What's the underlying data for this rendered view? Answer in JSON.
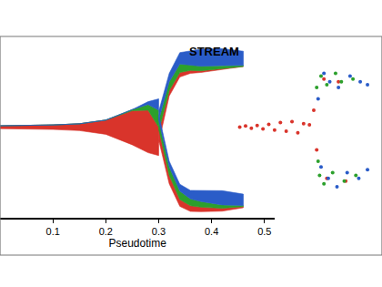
{
  "chart_data": [
    {
      "type": "stream",
      "title": "STREAM",
      "x_label": "Pseudotime",
      "xlim": [
        0,
        0.52
      ],
      "xticks": [
        0.1,
        0.2,
        0.3,
        0.4,
        0.5
      ],
      "ylim": [
        -1.6,
        1.6
      ],
      "tick_labels": "x",
      "branches": [
        {
          "x": [
            0,
            0.05,
            0.1,
            0.15,
            0.2,
            0.25,
            0.28,
            0.3
          ],
          "center": [
            0,
            0,
            0,
            0,
            0,
            0,
            0,
            0
          ],
          "series": [
            {
              "color": "#d9342b",
              "values": [
                0.05,
                0.06,
                0.08,
                0.12,
                0.25,
                0.6,
                0.75,
                0.5
              ]
            },
            {
              "color": "#2ca02c",
              "values": [
                0,
                0,
                0,
                0,
                0,
                0.02,
                0.1,
                0.3
              ]
            },
            {
              "color": "#2a5cc8",
              "values": [
                0,
                0,
                0,
                0,
                0,
                0,
                0.05,
                0.2
              ]
            }
          ]
        },
        {
          "x": [
            0.3,
            0.32,
            0.34,
            0.36,
            0.38,
            0.42,
            0.46
          ],
          "center": [
            0,
            0.75,
            1.1,
            1.15,
            1.17,
            1.2,
            1.2
          ],
          "series": [
            {
              "color": "#d9342b",
              "values": [
                0.2,
                0.1,
                0.08,
                0.05,
                0.03,
                0.02,
                0.01
              ]
            },
            {
              "color": "#2ca02c",
              "values": [
                0.2,
                0.15,
                0.15,
                0.1,
                0.08,
                0.05,
                0.02
              ]
            },
            {
              "color": "#2a5cc8",
              "values": [
                0.15,
                0.15,
                0.2,
                0.25,
                0.3,
                0.3,
                0.25
              ]
            }
          ]
        },
        {
          "x": [
            0.3,
            0.32,
            0.34,
            0.36,
            0.38,
            0.42,
            0.46
          ],
          "center": [
            0,
            -0.8,
            -1.2,
            -1.3,
            -1.3,
            -1.3,
            -1.3
          ],
          "series": [
            {
              "color": "#d9342b",
              "values": [
                0.2,
                0.15,
                0.12,
                0.1,
                0.08,
                0.05,
                0.02
              ]
            },
            {
              "color": "#2ca02c",
              "values": [
                0.15,
                0.15,
                0.15,
                0.12,
                0.1,
                0.06,
                0.02
              ]
            },
            {
              "color": "#2a5cc8",
              "values": [
                0.1,
                0.1,
                0.12,
                0.15,
                0.2,
                0.25,
                0.2
              ]
            }
          ]
        }
      ]
    },
    {
      "type": "scatter",
      "tick_labels": false,
      "xlim": [
        0,
        1
      ],
      "ylim": [
        -1.6,
        1.6
      ],
      "series": [
        {
          "color": "#d9342b",
          "x": [
            0.02,
            0.06,
            0.1,
            0.14,
            0.18,
            0.22,
            0.26,
            0.3,
            0.34,
            0.38,
            0.42,
            0.46,
            0.5,
            0.53,
            0.55,
            0.6,
            0.7,
            0.62,
            0.75
          ],
          "y": [
            0,
            0.02,
            -0.02,
            0.03,
            -0.03,
            0.05,
            -0.05,
            0.08,
            -0.07,
            0.1,
            -0.1,
            0.06,
            0.04,
            0.3,
            -0.4,
            0.85,
            0.8,
            -0.9,
            -0.95
          ]
        },
        {
          "color": "#2ca02c",
          "x": [
            0.55,
            0.56,
            0.58,
            0.62,
            0.68,
            0.72,
            0.8,
            0.57,
            0.6,
            0.66,
            0.74,
            0.82
          ],
          "y": [
            0.7,
            -0.6,
            0.9,
            0.75,
            0.95,
            0.8,
            0.85,
            -0.85,
            -1.0,
            -0.8,
            -0.95,
            -0.85
          ]
        },
        {
          "color": "#2a5cc8",
          "x": [
            0.56,
            0.6,
            0.64,
            0.7,
            0.78,
            0.85,
            0.9,
            0.58,
            0.63,
            0.69,
            0.76,
            0.84,
            0.9
          ],
          "y": [
            0.5,
            0.95,
            0.8,
            0.7,
            0.9,
            0.8,
            0.75,
            -0.7,
            -0.9,
            -1.05,
            -0.8,
            -0.9,
            -0.75
          ]
        }
      ]
    }
  ]
}
